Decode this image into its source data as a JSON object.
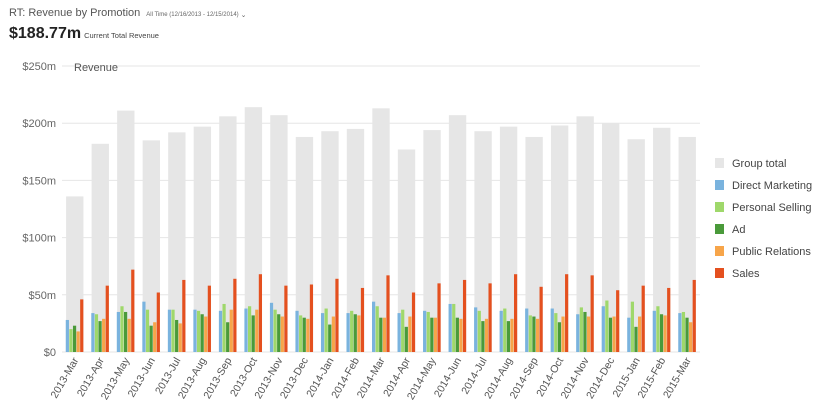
{
  "header": {
    "title": "RT: Revenue by Promotion",
    "range_label": "All Time (12/16/2013 - 12/15/2014)",
    "metric_value": "$188.77m",
    "metric_label": "Current Total Revenue"
  },
  "colors": {
    "group_total": "#e6e6e6",
    "direct_marketing": "#7ab3de",
    "personal_selling": "#9fd86b",
    "ad": "#4a9a3a",
    "public_relations": "#f7a54a",
    "sales": "#e4501f",
    "grid": "#e6e6e6"
  },
  "chart_data": {
    "type": "bar",
    "title": "",
    "inline_label": "Revenue",
    "xlabel": "",
    "ylabel": "",
    "ylim": [
      0,
      250
    ],
    "yticks": [
      0,
      50,
      100,
      150,
      200,
      250
    ],
    "ytick_labels": [
      "$0",
      "$50m",
      "$100m",
      "$150m",
      "$200m",
      "$250m"
    ],
    "grid": true,
    "legend_position": "right",
    "categories": [
      "2013-Mar",
      "2013-Apr",
      "2013-May",
      "2013-Jun",
      "2013-Jul",
      "2013-Aug",
      "2013-Sep",
      "2013-Oct",
      "2013-Nov",
      "2013-Dec",
      "2014-Jan",
      "2014-Feb",
      "2014-Mar",
      "2014-Apr",
      "2014-May",
      "2014-Jun",
      "2014-Jul",
      "2014-Aug",
      "2014-Sep",
      "2014-Oct",
      "2014-Nov",
      "2014-Dec",
      "2015-Jan",
      "2015-Feb",
      "2015-Mar"
    ],
    "series": [
      {
        "name": "Group total",
        "color_key": "group_total",
        "values": [
          136,
          182,
          211,
          185,
          192,
          197,
          206,
          214,
          207,
          188,
          193,
          195,
          213,
          177,
          194,
          207,
          193,
          197,
          188,
          198,
          206,
          200,
          186,
          196,
          188
        ]
      },
      {
        "name": "Direct Marketing",
        "color_key": "direct_marketing",
        "values": [
          28,
          34,
          35,
          44,
          37,
          37,
          36,
          38,
          43,
          36,
          34,
          34,
          44,
          34,
          36,
          42,
          39,
          36,
          38,
          38,
          33,
          40,
          30,
          36,
          34
        ]
      },
      {
        "name": "Personal Selling",
        "color_key": "personal_selling",
        "values": [
          20,
          33,
          40,
          37,
          37,
          36,
          42,
          40,
          37,
          32,
          38,
          36,
          40,
          37,
          35,
          42,
          36,
          38,
          32,
          34,
          39,
          45,
          44,
          40,
          35
        ]
      },
      {
        "name": "Ad",
        "color_key": "ad",
        "values": [
          23,
          27,
          35,
          23,
          28,
          33,
          26,
          32,
          33,
          30,
          24,
          33,
          30,
          22,
          30,
          30,
          27,
          27,
          31,
          26,
          35,
          30,
          22,
          33,
          30
        ]
      },
      {
        "name": "Public Relations",
        "color_key": "public_relations",
        "values": [
          18,
          29,
          29,
          26,
          25,
          31,
          37,
          37,
          31,
          29,
          31,
          32,
          30,
          31,
          30,
          29,
          29,
          29,
          29,
          31,
          31,
          31,
          31,
          32,
          26
        ]
      },
      {
        "name": "Sales",
        "color_key": "sales",
        "values": [
          46,
          58,
          72,
          52,
          63,
          58,
          64,
          68,
          58,
          59,
          64,
          56,
          67,
          52,
          60,
          63,
          60,
          68,
          57,
          68,
          67,
          54,
          58,
          56,
          63
        ]
      }
    ]
  }
}
